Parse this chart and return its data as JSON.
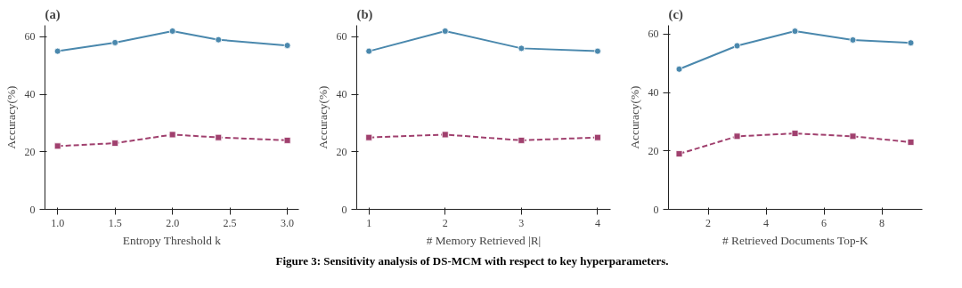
{
  "chart_data": [
    {
      "type": "line",
      "title": "(a)",
      "xlabel": "Entropy Threshold k",
      "ylabel": "Accuracy(%)",
      "x": [
        1.0,
        1.5,
        2.0,
        2.4,
        3.0
      ],
      "xlim": [
        0.89,
        3.1
      ],
      "xticks": [
        {
          "value": 1.0,
          "label": "1.0"
        },
        1.5,
        {
          "value": 2.0,
          "label": "2.0"
        },
        2.5,
        {
          "value": 3.0,
          "label": "3.0"
        }
      ],
      "ylim": [
        0,
        64
      ],
      "yticks": [
        0,
        20,
        40,
        60
      ],
      "grid": false,
      "series": [
        {
          "color": "#4a88ad",
          "marker": "circle",
          "line_style": "solid",
          "values": [
            55,
            58,
            62,
            59,
            57
          ]
        },
        {
          "color": "#a0406e",
          "marker": "square",
          "line_style": "dashed",
          "values": [
            22,
            23,
            26,
            25,
            24
          ]
        }
      ]
    },
    {
      "type": "line",
      "title": "(b)",
      "xlabel": "# Memory Retrieved |R|",
      "ylabel": "Accuracy(%)",
      "x": [
        1,
        2,
        3,
        4
      ],
      "xlim": [
        0.84,
        4.17
      ],
      "xticks": [
        1,
        2,
        3,
        4
      ],
      "ylim": [
        0,
        64
      ],
      "yticks": [
        0,
        20,
        40,
        60
      ],
      "grid": false,
      "series": [
        {
          "color": "#4a88ad",
          "marker": "circle",
          "line_style": "solid",
          "values": [
            55,
            62,
            56,
            55
          ]
        },
        {
          "color": "#a0406e",
          "marker": "square",
          "line_style": "dashed",
          "values": [
            25,
            26,
            24,
            25
          ]
        }
      ]
    },
    {
      "type": "line",
      "title": "(c)",
      "xlabel": "# Retrieved Documents Top-K",
      "ylabel": "Accuracy(%)",
      "x": [
        1,
        3,
        5,
        7,
        9
      ],
      "xlim": [
        0.63,
        9.4
      ],
      "xticks": [
        2,
        4,
        6,
        8
      ],
      "ylim": [
        0,
        63
      ],
      "yticks": [
        0,
        20,
        40,
        60
      ],
      "grid": false,
      "series": [
        {
          "color": "#4a88ad",
          "marker": "circle",
          "line_style": "solid",
          "values": [
            48,
            56,
            61,
            58,
            57
          ]
        },
        {
          "color": "#a0406e",
          "marker": "square",
          "line_style": "dashed",
          "values": [
            19,
            25,
            26,
            25,
            23
          ]
        }
      ],
      "annotations": [
        "Figure 3: Sensitivity analysis of DS-MCM with respect to key hyperparameters."
      ]
    }
  ]
}
